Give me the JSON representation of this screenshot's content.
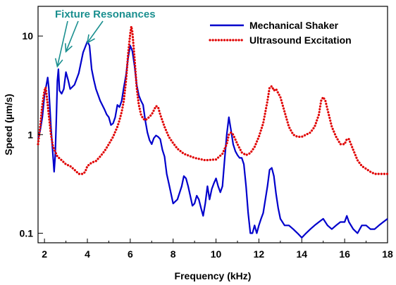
{
  "chart_data": {
    "type": "line",
    "title": "",
    "xlabel": "Frequency (kHz)",
    "ylabel": "Speed (µm/s)",
    "xlim": [
      1.7,
      18
    ],
    "ylim": [
      0.08,
      20
    ],
    "y_scale": "log",
    "x_ticks": [
      2,
      4,
      6,
      8,
      10,
      12,
      14,
      16,
      18
    ],
    "x_tick_labels": [
      "2",
      "4",
      "6",
      "8",
      "10",
      "12",
      "14",
      "16",
      "18"
    ],
    "y_ticks": [
      0.1,
      1,
      10
    ],
    "y_tick_labels": [
      "0.1",
      "1",
      "10"
    ],
    "grid": false,
    "legend_position": "top-right",
    "series": [
      {
        "name": "Mechanical Shaker",
        "color": "#0000cc",
        "style": "solid",
        "x": [
          1.7,
          1.8,
          1.9,
          2.0,
          2.1,
          2.15,
          2.2,
          2.3,
          2.4,
          2.45,
          2.5,
          2.55,
          2.6,
          2.65,
          2.7,
          2.8,
          2.9,
          3.0,
          3.1,
          3.2,
          3.4,
          3.6,
          3.8,
          4.0,
          4.1,
          4.2,
          4.3,
          4.4,
          4.6,
          4.8,
          4.9,
          5.0,
          5.1,
          5.2,
          5.3,
          5.4,
          5.5,
          5.6,
          5.7,
          5.8,
          5.9,
          6.0,
          6.05,
          6.1,
          6.2,
          6.3,
          6.4,
          6.5,
          6.6,
          6.7,
          6.8,
          6.9,
          7.0,
          7.1,
          7.2,
          7.3,
          7.4,
          7.5,
          7.6,
          7.7,
          7.8,
          8.0,
          8.2,
          8.4,
          8.5,
          8.6,
          8.7,
          8.8,
          8.9,
          9.0,
          9.1,
          9.2,
          9.3,
          9.4,
          9.5,
          9.6,
          9.7,
          9.8,
          9.9,
          10.0,
          10.1,
          10.2,
          10.3,
          10.4,
          10.5,
          10.6,
          10.7,
          10.8,
          10.9,
          11.0,
          11.1,
          11.2,
          11.3,
          11.4,
          11.5,
          11.6,
          11.7,
          11.8,
          11.9,
          12.0,
          12.1,
          12.2,
          12.3,
          12.4,
          12.5,
          12.6,
          12.7,
          12.8,
          12.9,
          13.0,
          13.2,
          13.4,
          13.6,
          13.8,
          14.0,
          14.2,
          14.4,
          14.6,
          14.8,
          15.0,
          15.2,
          15.4,
          15.6,
          15.8,
          16.0,
          16.1,
          16.2,
          16.4,
          16.6,
          16.8,
          17.0,
          17.2,
          17.4,
          17.6,
          17.8,
          18.0
        ],
        "y": [
          0.9,
          1.1,
          1.5,
          2.5,
          3.3,
          3.8,
          3.0,
          1.2,
          0.6,
          0.42,
          0.6,
          1.4,
          3.5,
          4.6,
          2.8,
          2.6,
          2.9,
          4.3,
          3.6,
          2.9,
          3.2,
          4.2,
          6.8,
          8.8,
          8.0,
          4.6,
          3.6,
          2.9,
          2.2,
          1.8,
          1.6,
          1.5,
          1.25,
          1.3,
          1.5,
          2.0,
          1.9,
          2.2,
          3.0,
          4.0,
          6.0,
          8.0,
          7.5,
          7.0,
          5.0,
          3.2,
          2.5,
          2.2,
          2.0,
          1.4,
          1.05,
          0.88,
          0.8,
          0.92,
          0.98,
          0.95,
          0.9,
          0.7,
          0.6,
          0.4,
          0.32,
          0.2,
          0.22,
          0.3,
          0.38,
          0.36,
          0.3,
          0.24,
          0.19,
          0.2,
          0.24,
          0.22,
          0.18,
          0.15,
          0.2,
          0.3,
          0.22,
          0.28,
          0.32,
          0.36,
          0.3,
          0.26,
          0.3,
          0.55,
          1.0,
          1.5,
          1.1,
          0.8,
          0.68,
          0.62,
          0.58,
          0.58,
          0.5,
          0.3,
          0.16,
          0.1,
          0.1,
          0.12,
          0.1,
          0.12,
          0.14,
          0.16,
          0.22,
          0.3,
          0.44,
          0.46,
          0.38,
          0.25,
          0.18,
          0.14,
          0.12,
          0.12,
          0.11,
          0.1,
          0.09,
          0.1,
          0.11,
          0.12,
          0.13,
          0.14,
          0.12,
          0.11,
          0.12,
          0.13,
          0.13,
          0.15,
          0.13,
          0.11,
          0.1,
          0.12,
          0.12,
          0.11,
          0.11,
          0.12,
          0.13,
          0.14
        ]
      },
      {
        "name": "Ultrasound Excitation",
        "color": "#e00000",
        "style": "dotted",
        "x": [
          1.7,
          1.8,
          1.9,
          2.0,
          2.05,
          2.1,
          2.2,
          2.3,
          2.4,
          2.6,
          2.8,
          3.0,
          3.2,
          3.4,
          3.6,
          3.8,
          3.9,
          4.0,
          4.2,
          4.4,
          4.6,
          4.8,
          5.0,
          5.2,
          5.4,
          5.5,
          5.6,
          5.7,
          5.8,
          5.9,
          6.0,
          6.05,
          6.1,
          6.2,
          6.3,
          6.4,
          6.5,
          6.6,
          6.7,
          6.8,
          7.0,
          7.2,
          7.3,
          7.4,
          7.6,
          7.8,
          8.0,
          8.2,
          8.5,
          9.0,
          9.5,
          10.0,
          10.3,
          10.5,
          10.6,
          10.7,
          10.8,
          11.0,
          11.2,
          11.4,
          11.6,
          11.8,
          12.0,
          12.2,
          12.4,
          12.5,
          12.6,
          12.7,
          12.8,
          13.0,
          13.2,
          13.4,
          13.6,
          13.8,
          14.0,
          14.2,
          14.4,
          14.6,
          14.8,
          14.9,
          15.0,
          15.1,
          15.2,
          15.4,
          15.6,
          15.8,
          16.0,
          16.1,
          16.2,
          16.4,
          16.6,
          16.8,
          17.0,
          17.2,
          17.4,
          17.6,
          17.8,
          18.0
        ],
        "y": [
          0.8,
          1.2,
          2.0,
          2.8,
          3.0,
          2.5,
          1.6,
          1.0,
          0.75,
          0.6,
          0.55,
          0.5,
          0.48,
          0.44,
          0.4,
          0.4,
          0.42,
          0.48,
          0.52,
          0.54,
          0.6,
          0.68,
          0.8,
          0.95,
          1.2,
          1.4,
          1.7,
          2.2,
          3.5,
          6.5,
          10.5,
          12.5,
          11.0,
          6.0,
          3.0,
          2.0,
          1.6,
          1.45,
          1.4,
          1.45,
          1.6,
          1.95,
          1.9,
          1.6,
          1.2,
          0.95,
          0.82,
          0.72,
          0.64,
          0.58,
          0.55,
          0.56,
          0.64,
          0.8,
          1.0,
          1.05,
          1.0,
          0.8,
          0.66,
          0.62,
          0.65,
          0.75,
          0.95,
          1.3,
          2.2,
          3.0,
          3.1,
          2.8,
          2.9,
          2.4,
          1.7,
          1.2,
          1.0,
          0.95,
          0.95,
          1.0,
          1.05,
          1.2,
          1.6,
          2.2,
          2.4,
          2.2,
          1.8,
          1.2,
          0.95,
          0.8,
          0.8,
          0.9,
          0.9,
          0.7,
          0.55,
          0.48,
          0.45,
          0.42,
          0.4,
          0.4,
          0.4,
          0.4
        ]
      }
    ],
    "annotation": {
      "text": "Fixture Resonances",
      "color": "#1a8f8f",
      "arrow_targets": [
        {
          "x": 2.6,
          "y": 4.6
        },
        {
          "x": 3.0,
          "y": 6.5
        },
        {
          "x": 4.0,
          "y": 8.0
        }
      ]
    }
  }
}
